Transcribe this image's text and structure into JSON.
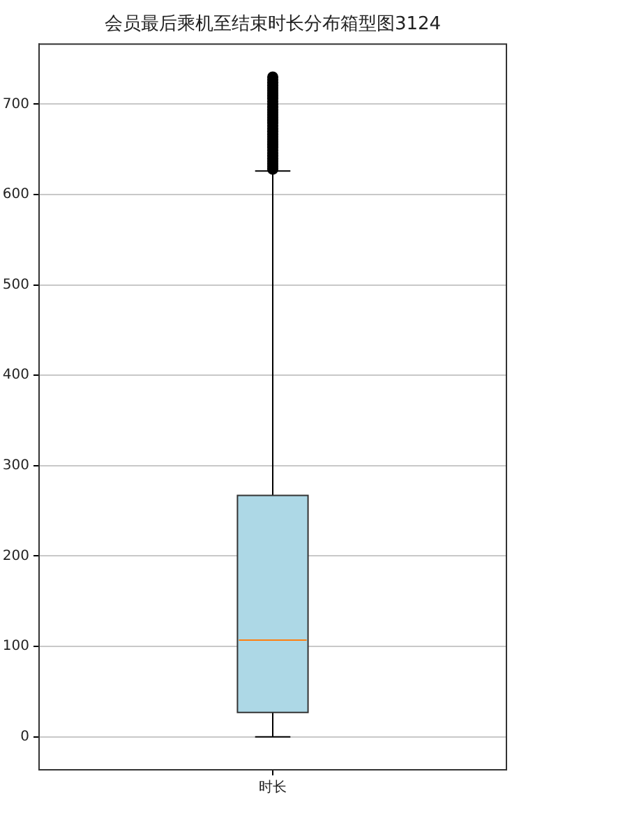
{
  "chart_data": {
    "type": "box",
    "title": "会员最后乘机至结束时长分布箱型图3124",
    "categories": [
      "时长"
    ],
    "boxes": [
      {
        "low": 0,
        "q1": 27,
        "median": 107,
        "q3": 267,
        "high": 626,
        "outliers": [
          628,
          631,
          634,
          637,
          640,
          643,
          646,
          649,
          652,
          655,
          658,
          661,
          664,
          667,
          670,
          673,
          676,
          679,
          682,
          685,
          688,
          691,
          694,
          697,
          700,
          703,
          706,
          709,
          712,
          715,
          718,
          721,
          724,
          727,
          730
        ]
      }
    ],
    "color": "#add8e6",
    "marker": "circle",
    "ylim": [
      -36.5,
      766.5
    ],
    "yticks": [
      0,
      100,
      200,
      300,
      400,
      500,
      600,
      700
    ],
    "grid": "y"
  }
}
